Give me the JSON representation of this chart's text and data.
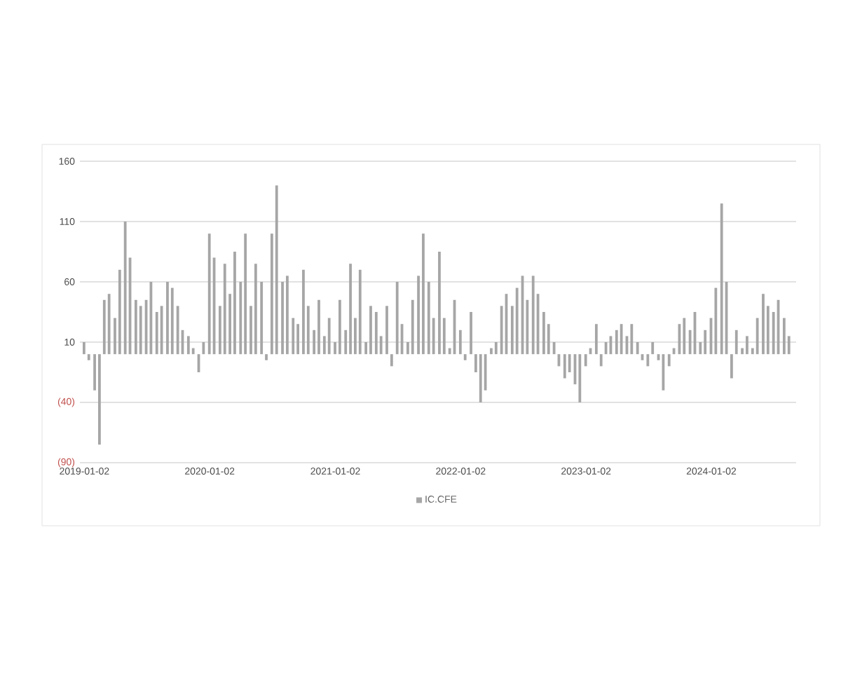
{
  "chart_data": {
    "type": "bar",
    "x": [
      "2019-01-01",
      "2019-01-15",
      "2019-02-01",
      "2019-02-15",
      "2019-03-01",
      "2019-03-15",
      "2019-04-01",
      "2019-04-15",
      "2019-05-01",
      "2019-05-15",
      "2019-06-01",
      "2019-06-15",
      "2019-07-01",
      "2019-07-15",
      "2019-08-01",
      "2019-08-15",
      "2019-09-01",
      "2019-09-15",
      "2019-10-01",
      "2019-10-15",
      "2019-11-01",
      "2019-11-15",
      "2019-12-01",
      "2019-12-15",
      "2020-01-01",
      "2020-01-15",
      "2020-02-01",
      "2020-02-15",
      "2020-03-01",
      "2020-03-15",
      "2020-04-01",
      "2020-04-15",
      "2020-05-01",
      "2020-05-15",
      "2020-06-01",
      "2020-06-15",
      "2020-07-01",
      "2020-07-15",
      "2020-08-01",
      "2020-08-15",
      "2020-09-01",
      "2020-09-15",
      "2020-10-01",
      "2020-10-15",
      "2020-11-01",
      "2020-11-15",
      "2020-12-01",
      "2020-12-15",
      "2021-01-01",
      "2021-01-15",
      "2021-02-01",
      "2021-02-15",
      "2021-03-01",
      "2021-03-15",
      "2021-04-01",
      "2021-04-15",
      "2021-05-01",
      "2021-05-15",
      "2021-06-01",
      "2021-06-15",
      "2021-07-01",
      "2021-07-15",
      "2021-08-01",
      "2021-08-15",
      "2021-09-01",
      "2021-09-15",
      "2021-10-01",
      "2021-10-15",
      "2021-11-01",
      "2021-11-15",
      "2021-12-01",
      "2021-12-15",
      "2022-01-01",
      "2022-01-15",
      "2022-02-01",
      "2022-02-15",
      "2022-03-01",
      "2022-03-15",
      "2022-04-01",
      "2022-04-15",
      "2022-05-01",
      "2022-05-15",
      "2022-06-01",
      "2022-06-15",
      "2022-07-01",
      "2022-07-15",
      "2022-08-01",
      "2022-08-15",
      "2022-09-01",
      "2022-09-15",
      "2022-10-01",
      "2022-10-15",
      "2022-11-01",
      "2022-11-15",
      "2022-12-01",
      "2022-12-15",
      "2023-01-01",
      "2023-01-15",
      "2023-02-01",
      "2023-02-15",
      "2023-03-01",
      "2023-03-15",
      "2023-04-01",
      "2023-04-15",
      "2023-05-01",
      "2023-05-15",
      "2023-06-01",
      "2023-06-15",
      "2023-07-01",
      "2023-07-15",
      "2023-08-01",
      "2023-08-15",
      "2023-09-01",
      "2023-09-15",
      "2023-10-01",
      "2023-10-15",
      "2023-11-01",
      "2023-11-15",
      "2023-12-01",
      "2023-12-15",
      "2024-01-01",
      "2024-01-15",
      "2024-02-01",
      "2024-02-15",
      "2024-03-01",
      "2024-03-15",
      "2024-04-01",
      "2024-04-15",
      "2024-05-01",
      "2024-05-15",
      "2024-06-01",
      "2024-06-15",
      "2024-07-01",
      "2024-07-15",
      "2024-08-01",
      "2024-08-15"
    ],
    "series": [
      {
        "name": "IC.CFE",
        "color": "#a6a6a6",
        "values": [
          10,
          -5,
          -30,
          -75,
          45,
          50,
          30,
          70,
          110,
          80,
          45,
          40,
          45,
          60,
          35,
          40,
          60,
          55,
          40,
          20,
          15,
          5,
          -15,
          10,
          100,
          80,
          40,
          75,
          50,
          85,
          60,
          100,
          40,
          75,
          60,
          -5,
          100,
          140,
          60,
          65,
          30,
          25,
          70,
          40,
          20,
          45,
          15,
          30,
          10,
          45,
          20,
          75,
          30,
          70,
          10,
          40,
          35,
          15,
          40,
          -10,
          60,
          25,
          10,
          45,
          65,
          100,
          60,
          30,
          85,
          30,
          5,
          45,
          20,
          -5,
          35,
          -15,
          -40,
          -30,
          5,
          10,
          40,
          50,
          40,
          55,
          65,
          45,
          65,
          50,
          35,
          25,
          10,
          -10,
          -20,
          -15,
          -25,
          -40,
          -10,
          5,
          25,
          -10,
          10,
          15,
          20,
          25,
          15,
          25,
          10,
          -5,
          -10,
          10,
          -5,
          -30,
          -10,
          5,
          25,
          30,
          20,
          35,
          10,
          20,
          30,
          55,
          125,
          60,
          -20,
          20,
          5,
          15,
          5,
          30,
          50,
          40,
          35,
          45,
          30,
          15
        ]
      }
    ],
    "xlim": [
      "2018-12-20",
      "2024-09-05"
    ],
    "xticks": [
      "2019-01-02",
      "2020-01-02",
      "2021-01-02",
      "2022-01-02",
      "2023-01-02",
      "2024-01-02"
    ],
    "ylim": [
      -90,
      160
    ],
    "yticks": [
      160,
      110,
      60,
      10,
      {
        "value": -40,
        "label": "(40)"
      },
      {
        "value": -90,
        "label": "(90)"
      }
    ],
    "grid": "y",
    "legend": "bottom"
  }
}
